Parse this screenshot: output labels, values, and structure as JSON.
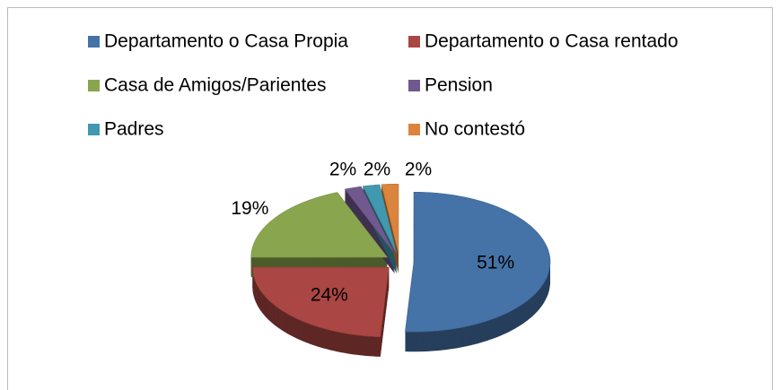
{
  "chart_data": {
    "type": "pie",
    "categories": [
      "Departamento o Casa Propia",
      "Departamento o Casa rentado",
      "Casa de Amigos/Parientes",
      "Pension",
      "Padres",
      "No contestó"
    ],
    "values": [
      51,
      24,
      19,
      2,
      2,
      2
    ],
    "value_labels": [
      "51%",
      "24%",
      "19%",
      "2%",
      "2%",
      "2%"
    ],
    "colors": [
      "#4572a7",
      "#aa4643",
      "#89a54e",
      "#71588f",
      "#4198af",
      "#db843d"
    ],
    "legend": "top"
  }
}
